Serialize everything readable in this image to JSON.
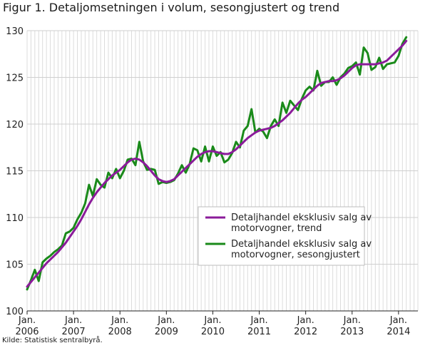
{
  "figure": {
    "title": "Figur 1. Detaljomsetningen i volum, sesongjustert og trend",
    "source": "Kilde: Statistisk sentralbyrå."
  },
  "chart_data": {
    "type": "line",
    "title": "Figur 1. Detaljomsetningen i volum, sesongjustert og trend",
    "xlabel": "",
    "ylabel": "",
    "x_start": "2006-01",
    "x_end": "2014-06",
    "ylim": [
      100,
      130
    ],
    "y_ticks": [
      100,
      105,
      110,
      115,
      120,
      125,
      130
    ],
    "x_ticks": [
      {
        "x": "2006-01",
        "line1": "Jan.",
        "line2": "2006"
      },
      {
        "x": "2007-01",
        "line1": "Jan.",
        "line2": "2007"
      },
      {
        "x": "2008-01",
        "line1": "Jan.",
        "line2": "2008"
      },
      {
        "x": "2009-01",
        "line1": "Jan.",
        "line2": "2009"
      },
      {
        "x": "2010-01",
        "line1": "Jan.",
        "line2": "2010"
      },
      {
        "x": "2011-01",
        "line1": "Jan.",
        "line2": "2011"
      },
      {
        "x": "2012-01",
        "line1": "Jan.",
        "line2": "2012"
      },
      {
        "x": "2013-01",
        "line1": "Jan.",
        "line2": "2013"
      },
      {
        "x": "2014-01",
        "line1": "Jan.",
        "line2": "2014"
      }
    ],
    "grid": "vertical-monthly-and-horizontal",
    "legend_placement": "center-right",
    "series": [
      {
        "name": "Detaljhandel eksklusiv salg av motorvogner, trend",
        "legend_lines": [
          "Detaljhandel eksklusiv salg av",
          "motorvogner, trend"
        ],
        "color": "#8b1b9a",
        "start": "2006-01",
        "values": [
          102.6,
          103.1,
          103.6,
          104.1,
          104.6,
          105.1,
          105.5,
          105.9,
          106.3,
          106.8,
          107.3,
          107.9,
          108.5,
          109.1,
          109.8,
          110.6,
          111.4,
          112.1,
          112.7,
          113.2,
          113.7,
          114.1,
          114.5,
          114.8,
          115.1,
          115.5,
          115.9,
          116.2,
          116.3,
          116.2,
          115.9,
          115.5,
          115.0,
          114.5,
          114.1,
          113.9,
          113.8,
          113.9,
          114.1,
          114.5,
          114.9,
          115.3,
          115.7,
          116.1,
          116.5,
          116.8,
          117.0,
          117.1,
          117.1,
          117.0,
          116.9,
          116.8,
          116.8,
          117.0,
          117.3,
          117.7,
          118.1,
          118.5,
          118.8,
          119.1,
          119.3,
          119.4,
          119.5,
          119.6,
          119.8,
          120.1,
          120.4,
          120.8,
          121.2,
          121.7,
          122.2,
          122.6,
          122.9,
          123.3,
          123.7,
          124.1,
          124.4,
          124.5,
          124.6,
          124.6,
          124.7,
          124.9,
          125.2,
          125.6,
          126.0,
          126.3,
          126.4,
          126.4,
          126.4,
          126.4,
          126.4,
          126.5,
          126.6,
          126.8,
          127.2,
          127.6,
          128.0,
          128.4,
          128.9
        ]
      },
      {
        "name": "Detaljhandel eksklusiv salg av motorvogner, sesongjustert",
        "legend_lines": [
          "Detaljhandel eksklusiv salg av",
          "motorvogner, sesongjustert"
        ],
        "color": "#1a8a1a",
        "start": "2006-01",
        "values": [
          102.3,
          103.3,
          104.4,
          103.2,
          105.2,
          105.6,
          105.9,
          106.3,
          106.6,
          107.0,
          108.3,
          108.5,
          108.9,
          109.8,
          110.5,
          111.5,
          113.5,
          112.3,
          114.1,
          113.5,
          113.2,
          114.8,
          114.2,
          115.2,
          114.2,
          115.0,
          116.2,
          116.3,
          115.6,
          118.1,
          116.0,
          115.1,
          115.2,
          115.1,
          113.6,
          113.8,
          113.7,
          113.8,
          114.0,
          114.7,
          115.6,
          114.8,
          115.7,
          117.4,
          117.2,
          116.0,
          117.6,
          116.0,
          117.6,
          116.6,
          117.0,
          115.9,
          116.2,
          116.9,
          118.1,
          117.5,
          119.3,
          119.8,
          121.6,
          119.1,
          119.5,
          119.2,
          118.5,
          119.8,
          120.5,
          119.8,
          122.3,
          121.2,
          122.5,
          122.0,
          121.5,
          122.7,
          123.6,
          124.0,
          123.6,
          125.7,
          124.1,
          124.5,
          124.5,
          125.0,
          124.2,
          125.0,
          125.4,
          126.0,
          126.2,
          126.6,
          125.3,
          128.2,
          127.6,
          125.8,
          126.1,
          127.1,
          125.9,
          126.4,
          126.5,
          126.6,
          127.3,
          128.6,
          129.3
        ]
      }
    ]
  }
}
